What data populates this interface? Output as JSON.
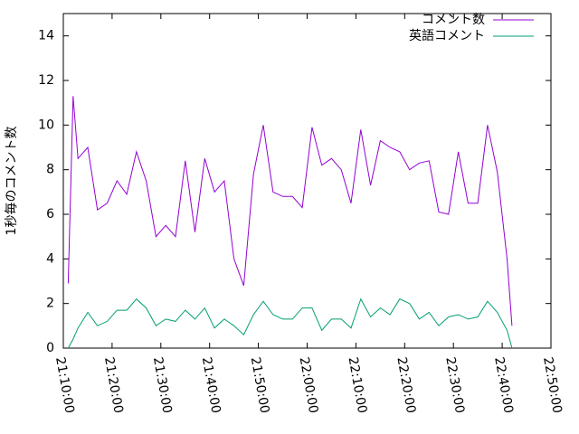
{
  "chart_data": {
    "type": "line",
    "y_label": "1秒毎のコメント数",
    "x": [
      "21:11:00",
      "21:12:00",
      "21:13:00",
      "21:15:00",
      "21:17:00",
      "21:19:00",
      "21:21:00",
      "21:23:00",
      "21:25:00",
      "21:27:00",
      "21:29:00",
      "21:31:00",
      "21:33:00",
      "21:35:00",
      "21:37:00",
      "21:39:00",
      "21:41:00",
      "21:43:00",
      "21:45:00",
      "21:47:00",
      "21:49:00",
      "21:51:00",
      "21:53:00",
      "21:55:00",
      "21:57:00",
      "21:59:00",
      "22:01:00",
      "22:03:00",
      "22:05:00",
      "22:07:00",
      "22:09:00",
      "22:11:00",
      "22:13:00",
      "22:15:00",
      "22:17:00",
      "22:19:00",
      "22:21:00",
      "22:23:00",
      "22:25:00",
      "22:27:00",
      "22:29:00",
      "22:31:00",
      "22:33:00",
      "22:35:00",
      "22:37:00",
      "22:39:00",
      "22:41:00",
      "22:42:00"
    ],
    "series": [
      {
        "name": "コメント数",
        "color": "#9400d3",
        "values": [
          2.9,
          11.3,
          8.5,
          9.0,
          6.2,
          6.5,
          7.5,
          6.9,
          8.8,
          7.5,
          5.0,
          5.5,
          5.0,
          8.4,
          5.2,
          8.5,
          7.0,
          7.5,
          4.0,
          2.8,
          7.8,
          10.0,
          7.0,
          6.8,
          6.8,
          6.3,
          9.9,
          8.2,
          8.5,
          8.0,
          6.5,
          9.8,
          7.3,
          9.3,
          9.0,
          8.8,
          8.0,
          8.3,
          8.4,
          6.1,
          6.0,
          8.8,
          6.5,
          6.5,
          10.0,
          7.9,
          4.0,
          1.0
        ]
      },
      {
        "name": "英語コメント",
        "color": "#009e73",
        "values": [
          0.0,
          0.4,
          0.9,
          1.6,
          1.0,
          1.2,
          1.7,
          1.7,
          2.2,
          1.8,
          1.0,
          1.3,
          1.2,
          1.7,
          1.3,
          1.8,
          0.9,
          1.3,
          1.0,
          0.6,
          1.5,
          2.1,
          1.5,
          1.3,
          1.3,
          1.8,
          1.8,
          0.8,
          1.3,
          1.3,
          0.9,
          2.2,
          1.4,
          1.8,
          1.5,
          2.2,
          2.0,
          1.3,
          1.6,
          1.0,
          1.4,
          1.5,
          1.3,
          1.4,
          2.1,
          1.6,
          0.8,
          0.0
        ]
      }
    ],
    "xlim": [
      "21:10:00",
      "22:50:00"
    ],
    "xticks": [
      "21:10:00",
      "21:20:00",
      "21:30:00",
      "21:40:00",
      "21:50:00",
      "22:00:00",
      "22:10:00",
      "22:20:00",
      "22:30:00",
      "22:40:00",
      "22:50:00"
    ],
    "ylim": [
      0,
      15
    ],
    "yticks": [
      0,
      2,
      4,
      6,
      8,
      10,
      12,
      14
    ],
    "legend": "top-right"
  }
}
